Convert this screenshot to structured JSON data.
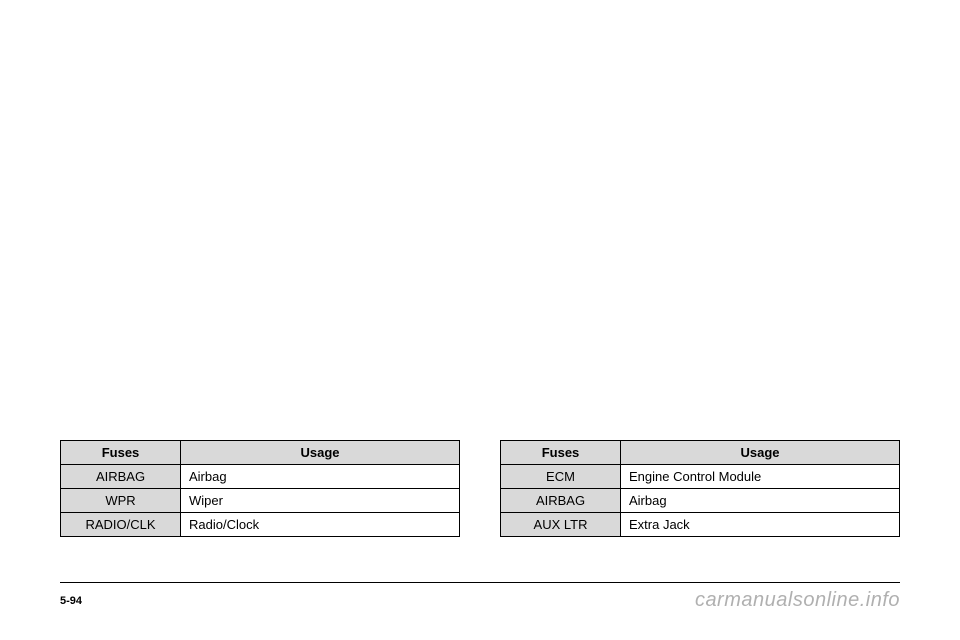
{
  "tables": {
    "left": {
      "headers": {
        "fuses": "Fuses",
        "usage": "Usage"
      },
      "rows": [
        {
          "fuse": "AIRBAG",
          "usage": "Airbag"
        },
        {
          "fuse": "WPR",
          "usage": "Wiper"
        },
        {
          "fuse": "RADIO/CLK",
          "usage": "Radio/Clock"
        }
      ]
    },
    "right": {
      "headers": {
        "fuses": "Fuses",
        "usage": "Usage"
      },
      "rows": [
        {
          "fuse": "ECM",
          "usage": "Engine Control Module"
        },
        {
          "fuse": "AIRBAG",
          "usage": "Airbag"
        },
        {
          "fuse": "AUX LTR",
          "usage": "Extra Jack"
        }
      ]
    }
  },
  "footer": {
    "page_number": "5-94",
    "watermark": "carmanualsonline.info"
  }
}
